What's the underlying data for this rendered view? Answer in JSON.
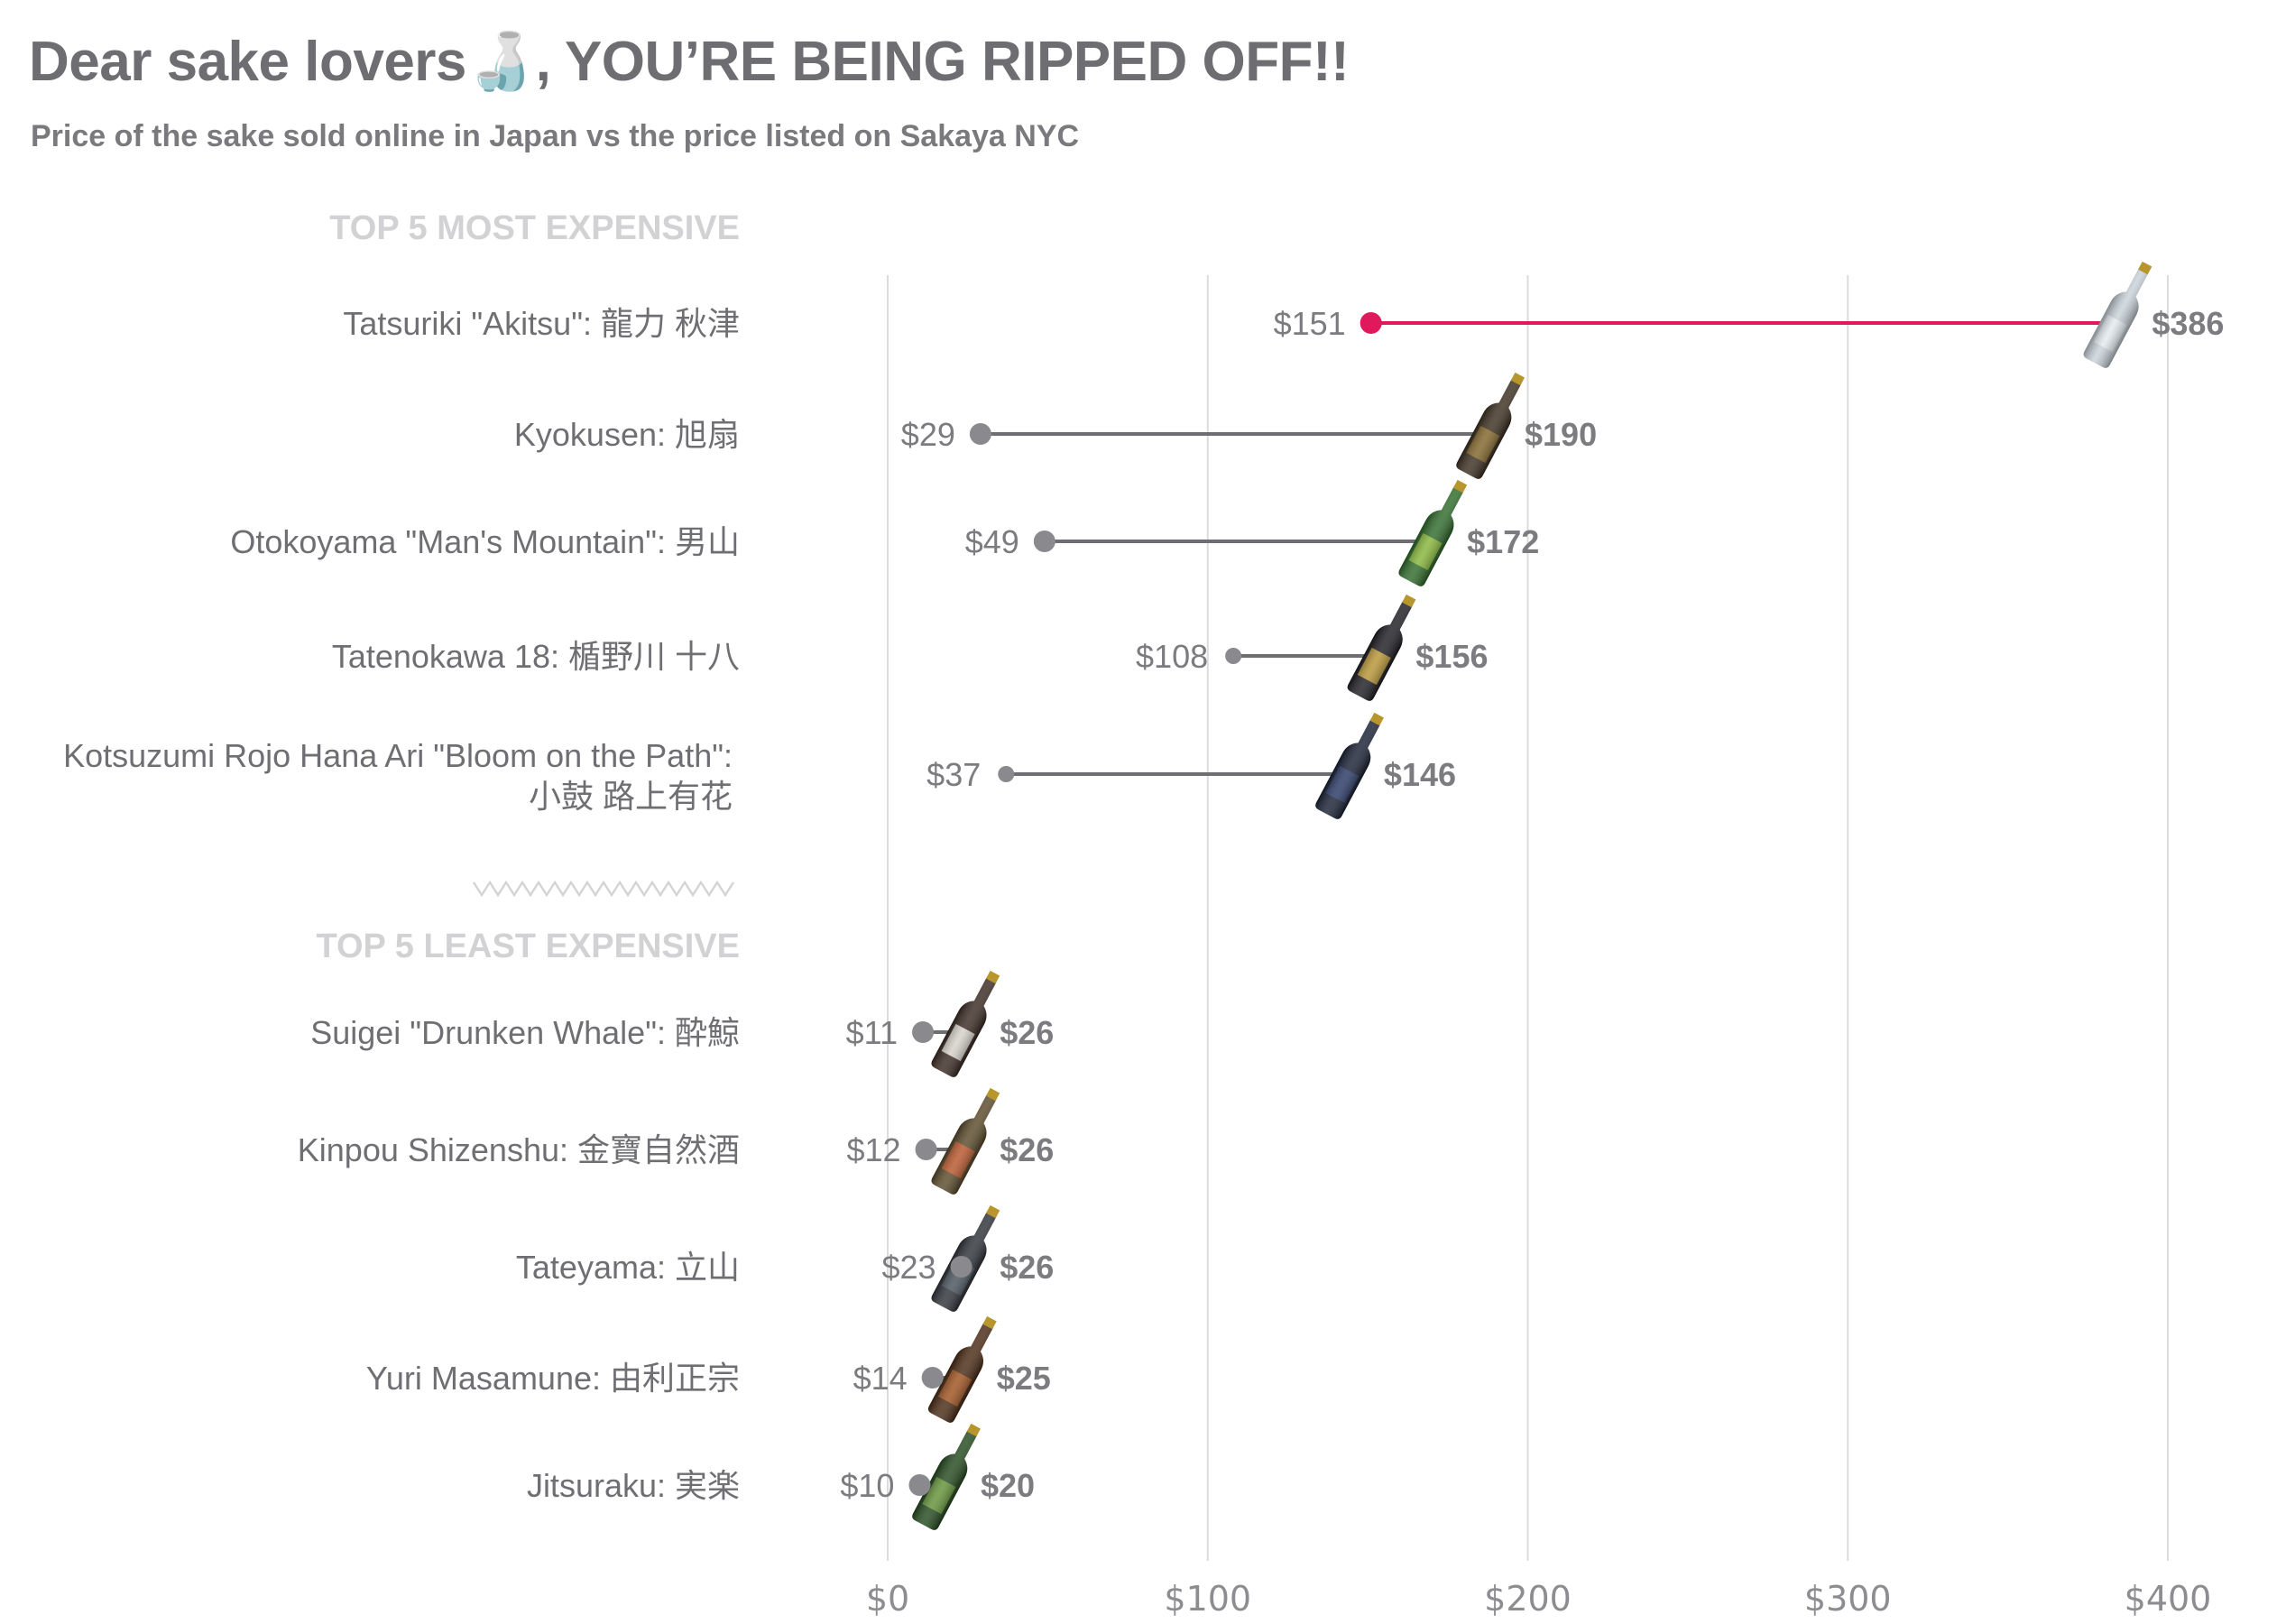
{
  "title": "Dear sake lovers🍶, YOU’RE BEING RIPPED OFF!!",
  "subtitle": "Price of the sake sold online in Japan vs the price listed on Sakaya NYC",
  "colors": {
    "highlight": "#e0195c",
    "neutral": "#6e6e72",
    "dot": "#8a8a8e",
    "section_label": "#d2d2d4"
  },
  "chart_data": {
    "type": "dumbbell",
    "x_axis": {
      "range": [
        0,
        400
      ],
      "ticks": [
        0,
        100,
        200,
        300,
        400
      ],
      "tick_labels": [
        "$0",
        "$100",
        "$200",
        "$300",
        "$400"
      ]
    },
    "grid": "vertical",
    "series_meaning": {
      "low": "Price online in Japan",
      "high": "Price listed on Sakaya NYC"
    },
    "groups": [
      {
        "label": "TOP 5 MOST EXPENSIVE",
        "items": [
          {
            "name": "Tatsuriki \"Akitsu\": 龍力 秋津",
            "low": 151,
            "high": 386,
            "low_label": "$151",
            "high_label": "$386",
            "highlight": true
          },
          {
            "name": "Kyokusen: 旭扇",
            "low": 29,
            "high": 190,
            "low_label": "$29",
            "high_label": "$190"
          },
          {
            "name": "Otokoyama  \"Man's Mountain\": 男山",
            "low": 49,
            "high": 172,
            "low_label": "$49",
            "high_label": "$172"
          },
          {
            "name": "Tatenokawa 18: 楯野川 十八",
            "low": 108,
            "high": 156,
            "low_label": "$108",
            "high_label": "$156"
          },
          {
            "name": "Kotsuzumi Rojo Hana Ari \"Bloom on the Path\":",
            "name_line2": "小鼓 路上有花",
            "low": 37,
            "high": 146,
            "low_label": "$37",
            "high_label": "$146"
          }
        ]
      },
      {
        "label": "TOP 5 LEAST EXPENSIVE",
        "items": [
          {
            "name": "Suigei \"Drunken Whale\":  酔鯨",
            "low": 11,
            "high": 26,
            "low_label": "$11",
            "high_label": "$26"
          },
          {
            "name": "Kinpou Shizenshu: 金寶自然酒",
            "low": 12,
            "high": 26,
            "low_label": "$12",
            "high_label": "$26"
          },
          {
            "name": "Tateyama: 立山",
            "low": 23,
            "high": 26,
            "low_label": "$23",
            "high_label": "$26"
          },
          {
            "name": "Yuri Masamune: 由利正宗",
            "low": 14,
            "high": 25,
            "low_label": "$14",
            "high_label": "$25"
          },
          {
            "name": "Jitsuraku: 実楽",
            "low": 10,
            "high": 20,
            "low_label": "$10",
            "high_label": "$20"
          }
        ]
      }
    ],
    "bottle_icons": [
      "sake-bottle-icon"
    ]
  }
}
